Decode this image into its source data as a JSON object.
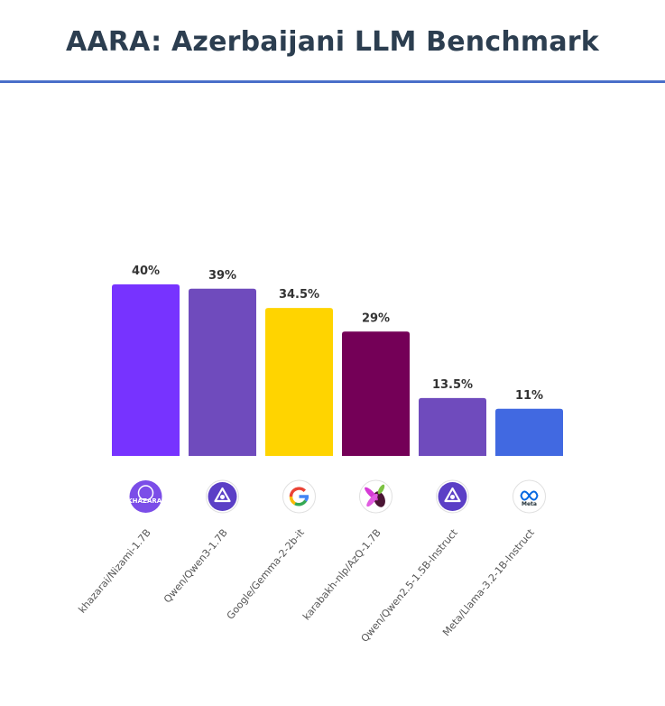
{
  "title": "AARA: Azerbaijani LLM Benchmark",
  "chart_data": {
    "type": "bar",
    "categories": [
      "khazarai/Nizami-1.7B",
      "Qwen/Qwen3-1.7B",
      "Google/Gemma-2-2b-it",
      "karabakh-nlp/AzQ-1.7B",
      "Qwen/Qwen2.5-1.5B-Instruct",
      "Meta/Llama-3.2-1B-Instruct"
    ],
    "values": [
      40,
      39,
      34.5,
      29,
      13.5,
      11
    ],
    "value_labels": [
      "40%",
      "39%",
      "34.5%",
      "29%",
      "13.5%",
      "11%"
    ],
    "colors": [
      "#7733ff",
      "#6f4bbd",
      "#ffd400",
      "#740057",
      "#6f4bbd",
      "#4169e1"
    ],
    "logos": [
      "khazarai-logo-icon",
      "qwen-logo-icon",
      "google-logo-icon",
      "azq-logo-icon",
      "qwen-logo-icon",
      "meta-logo-icon"
    ],
    "logo_texts": [
      "KHAZARAI",
      "",
      "",
      "",
      "",
      "Meta"
    ],
    "ylim": [
      0,
      40
    ],
    "grid": false,
    "legend": "none",
    "xlabel": "",
    "ylabel": ""
  }
}
